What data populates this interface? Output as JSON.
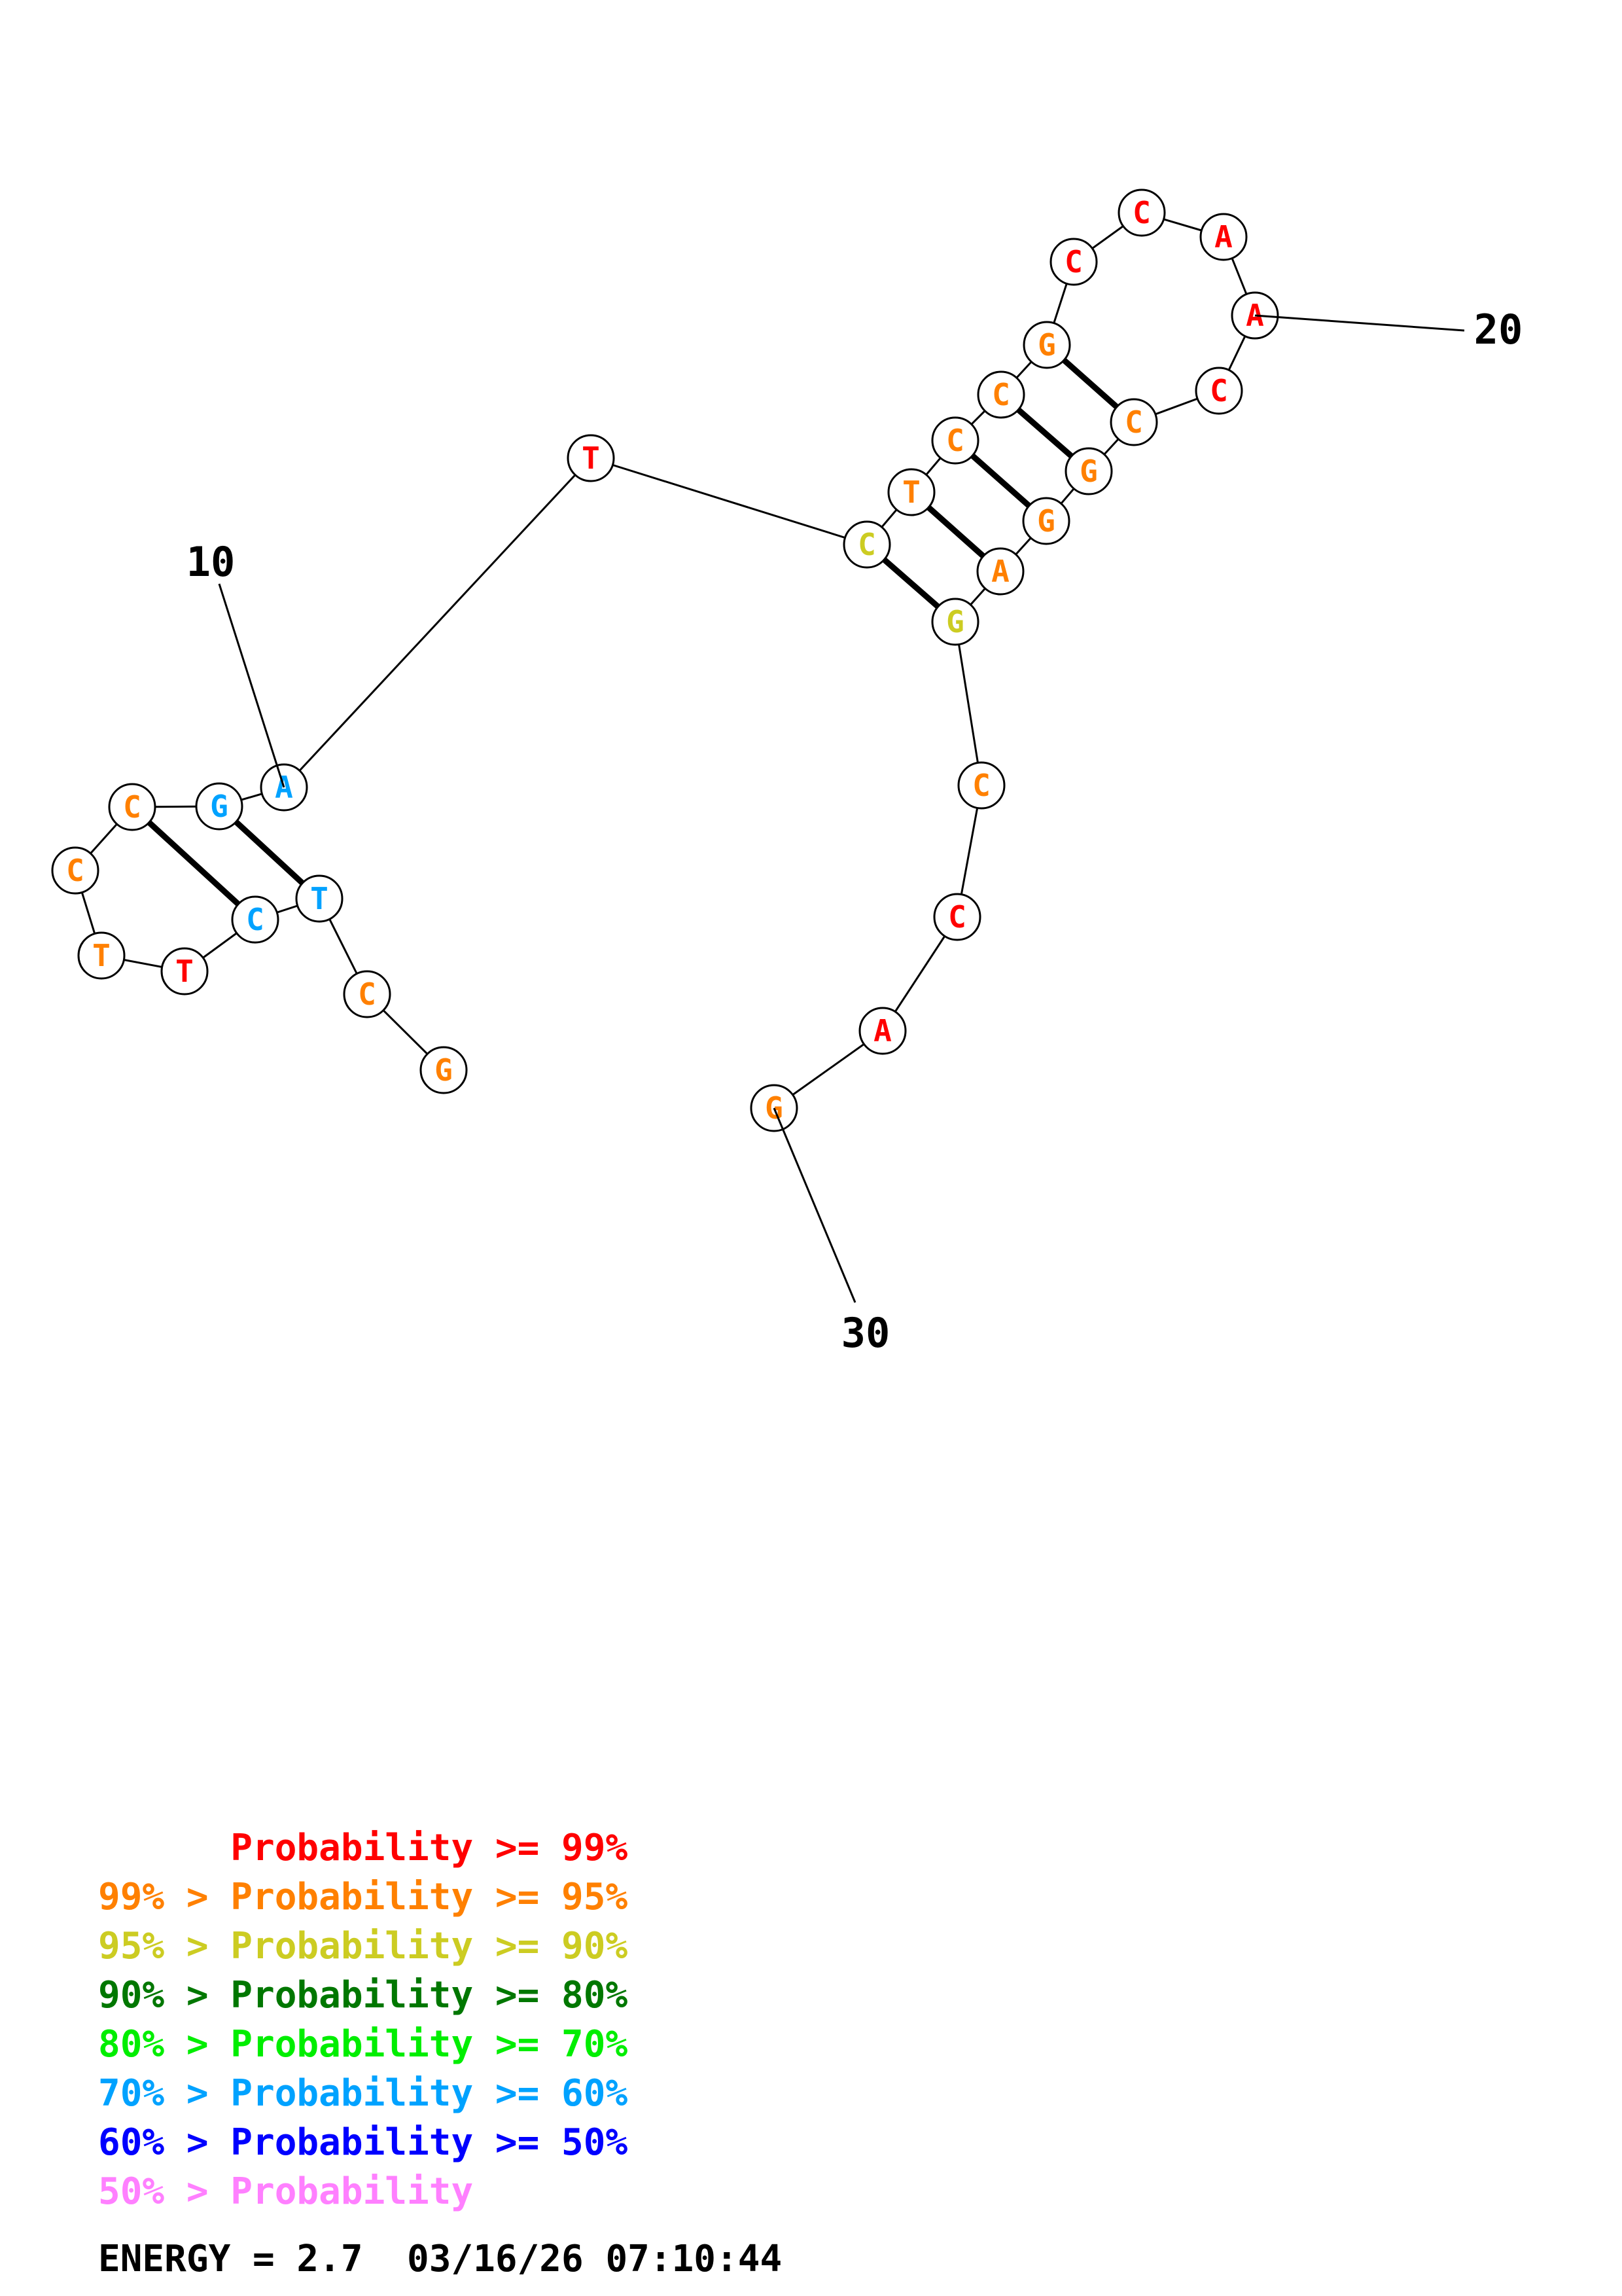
{
  "colors": {
    "p99": "#ff0000",
    "p95": "#ff8000",
    "p90": "#cccc22",
    "p80": "#007700",
    "p70": "#00ee00",
    "p60": "#00a2ff",
    "p50": "#0000ff",
    "plow": "#ff80ff"
  },
  "nucleotides": [
    {
      "base": "G",
      "color": "p95"
    },
    {
      "base": "C",
      "color": "p95"
    },
    {
      "base": "T",
      "color": "p60"
    },
    {
      "base": "C",
      "color": "p60"
    },
    {
      "base": "T",
      "color": "p99"
    },
    {
      "base": "T",
      "color": "p95"
    },
    {
      "base": "C",
      "color": "p95"
    },
    {
      "base": "C",
      "color": "p95"
    },
    {
      "base": "G",
      "color": "p60"
    },
    {
      "base": "A",
      "color": "p60"
    },
    {
      "base": "T",
      "color": "p99"
    },
    {
      "base": "C",
      "color": "p90"
    },
    {
      "base": "T",
      "color": "p95"
    },
    {
      "base": "C",
      "color": "p95"
    },
    {
      "base": "C",
      "color": "p95"
    },
    {
      "base": "G",
      "color": "p95"
    },
    {
      "base": "C",
      "color": "p99"
    },
    {
      "base": "C",
      "color": "p99"
    },
    {
      "base": "A",
      "color": "p99"
    },
    {
      "base": "A",
      "color": "p99"
    },
    {
      "base": "C",
      "color": "p99"
    },
    {
      "base": "C",
      "color": "p95"
    },
    {
      "base": "G",
      "color": "p95"
    },
    {
      "base": "G",
      "color": "p95"
    },
    {
      "base": "A",
      "color": "p95"
    },
    {
      "base": "G",
      "color": "p90"
    },
    {
      "base": "C",
      "color": "p95"
    },
    {
      "base": "C",
      "color": "p99"
    },
    {
      "base": "A",
      "color": "p99"
    },
    {
      "base": "G",
      "color": "p95"
    }
  ],
  "pairs": [
    [
      3,
      9
    ],
    [
      4,
      8
    ],
    [
      12,
      26
    ],
    [
      13,
      25
    ],
    [
      14,
      24
    ],
    [
      15,
      23
    ],
    [
      16,
      22
    ]
  ],
  "position_labels": [
    {
      "text": "10",
      "index": 10
    },
    {
      "text": "20",
      "index": 20
    },
    {
      "text": "30",
      "index": 30
    }
  ],
  "legend": [
    {
      "text": "      Probability >= 99%",
      "color": "p99"
    },
    {
      "text": "99% > Probability >= 95%",
      "color": "p95"
    },
    {
      "text": "95% > Probability >= 90%",
      "color": "p90"
    },
    {
      "text": "90% > Probability >= 80%",
      "color": "p80"
    },
    {
      "text": "80% > Probability >= 70%",
      "color": "p70"
    },
    {
      "text": "70% > Probability >= 60%",
      "color": "p60"
    },
    {
      "text": "60% > Probability >= 50%",
      "color": "p50"
    },
    {
      "text": "50% > Probability",
      "color": "plow"
    }
  ],
  "energy_line": "ENERGY = 2.7  03/16/26 07:10:44"
}
